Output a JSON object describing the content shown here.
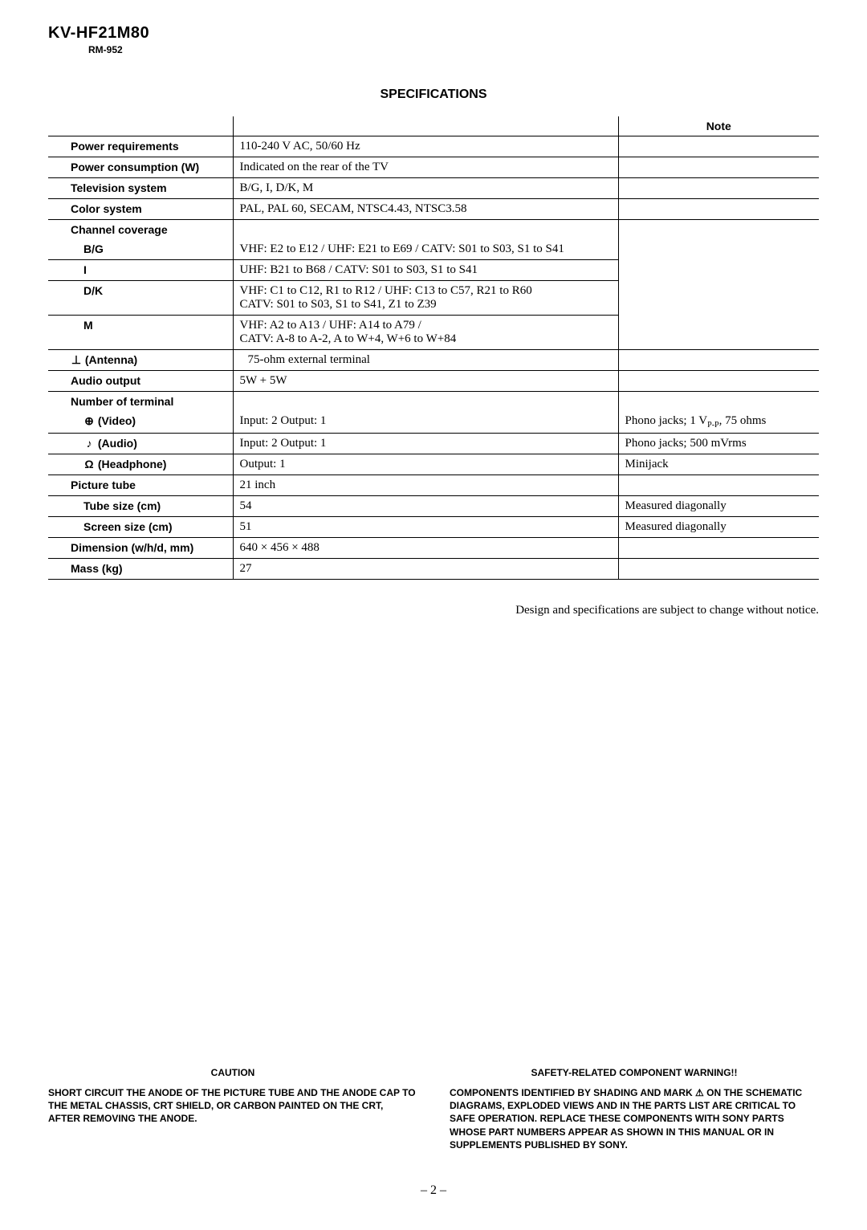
{
  "header": {
    "model_main": "KV-HF21M80",
    "model_sub": "RM-952"
  },
  "section_title": "SPECIFICATIONS",
  "note_header": "Note",
  "rows": {
    "power_req_label": "Power requirements",
    "power_req_val": "110-240 V AC, 50/60 Hz",
    "power_cons_label": "Power consumption (W)",
    "power_cons_val": "Indicated on the rear of the TV",
    "tv_sys_label": "Television system",
    "tv_sys_val": "B/G, I, D/K, M",
    "color_sys_label": "Color system",
    "color_sys_val": "PAL, PAL 60, SECAM, NTSC4.43, NTSC3.58",
    "chan_cov_label": "Channel coverage",
    "bg_label": "B/G",
    "bg_val": "VHF: E2 to E12 / UHF: E21 to E69 / CATV: S01 to S03, S1 to S41",
    "i_label": "I",
    "i_val": "UHF: B21 to B68 / CATV: S01 to S03, S1 to S41",
    "dk_label": "D/K",
    "dk_val": "VHF: C1 to C12, R1 to R12 / UHF: C13 to C57, R21 to R60\nCATV: S01 to S03, S1 to S41, Z1 to Z39",
    "m_label": "M",
    "m_val": "VHF: A2 to A13 / UHF: A14 to A79 /\nCATV: A-8 to A-2, A to W+4, W+6 to W+84",
    "antenna_label": "(Antenna)",
    "antenna_val": "75-ohm external terminal",
    "audio_out_label": "Audio output",
    "audio_out_val": "5W + 5W",
    "num_term_label": "Number of terminal",
    "video_label": "(Video)",
    "video_val": "Input: 2   Output: 1",
    "video_note_pre": "Phono jacks; 1 V",
    "video_note_sub": "P-P",
    "video_note_post": ", 75 ohms",
    "audio_label": "(Audio)",
    "audio_val": "Input: 2  Output: 1",
    "audio_note": "Phono jacks; 500 mVrms",
    "hp_label": "(Headphone)",
    "hp_val": "Output: 1",
    "hp_note": "Minijack",
    "pic_tube_label": "Picture tube",
    "pic_tube_val": "21 inch",
    "tube_size_label": "Tube size (cm)",
    "tube_size_val": "54",
    "tube_size_note": "Measured diagonally",
    "screen_size_label": "Screen size (cm)",
    "screen_size_val": "51",
    "screen_size_note": "Measured diagonally",
    "dim_label": "Dimension (w/h/d, mm)",
    "dim_val": "640 × 456 × 488",
    "mass_label": "Mass (kg)",
    "mass_val": "27"
  },
  "notice": "Design and specifications are subject to change without notice.",
  "footer": {
    "caution_title": "CAUTION",
    "caution_body": "SHORT CIRCUIT THE ANODE OF THE PICTURE TUBE AND THE ANODE CAP TO THE METAL CHASSIS, CRT SHIELD, OR CARBON PAINTED ON THE CRT, AFTER REMOVING THE ANODE.",
    "safety_title": "SAFETY-RELATED COMPONENT WARNING!!",
    "safety_body_pre": "COMPONENTS IDENTIFIED BY SHADING AND MARK ",
    "safety_body_mark": "⚠",
    "safety_body_post": " ON THE SCHEMATIC DIAGRAMS, EXPLODED VIEWS AND IN THE PARTS LIST ARE CRITICAL TO SAFE OPERATION. REPLACE THESE COMPONENTS WITH SONY PARTS WHOSE PART NUMBERS APPEAR AS SHOWN IN THIS MANUAL OR IN SUPPLEMENTS PUBLISHED BY SONY."
  },
  "page_num": "– 2 –",
  "icons": {
    "antenna": "⊥",
    "video": "⊕",
    "audio": "♪",
    "headphone": "Ω"
  }
}
